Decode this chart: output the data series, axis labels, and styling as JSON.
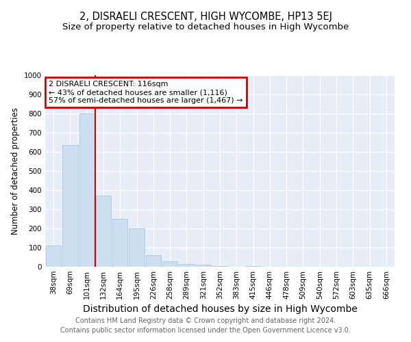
{
  "title": "2, DISRAELI CRESCENT, HIGH WYCOMBE, HP13 5EJ",
  "subtitle": "Size of property relative to detached houses in High Wycombe",
  "xlabel": "Distribution of detached houses by size in High Wycombe",
  "ylabel": "Number of detached properties",
  "categories": [
    "38sqm",
    "69sqm",
    "101sqm",
    "132sqm",
    "164sqm",
    "195sqm",
    "226sqm",
    "258sqm",
    "289sqm",
    "321sqm",
    "352sqm",
    "383sqm",
    "415sqm",
    "446sqm",
    "478sqm",
    "509sqm",
    "540sqm",
    "572sqm",
    "603sqm",
    "635sqm",
    "666sqm"
  ],
  "values": [
    110,
    635,
    800,
    370,
    250,
    200,
    60,
    30,
    15,
    10,
    5,
    0,
    5,
    0,
    0,
    0,
    0,
    0,
    0,
    0,
    0
  ],
  "bar_color": "#ccdff0",
  "bar_edge_color": "#a8c8e8",
  "red_line_index": 2,
  "annotation_line1": "2 DISRAELI CRESCENT: 116sqm",
  "annotation_line2": "← 43% of detached houses are smaller (1,116)",
  "annotation_line3": "57% of semi-detached houses are larger (1,467) →",
  "annotation_box_color": "#ffffff",
  "annotation_box_edge_color": "#cc0000",
  "footer_line1": "Contains HM Land Registry data © Crown copyright and database right 2024.",
  "footer_line2": "Contains public sector information licensed under the Open Government Licence v3.0.",
  "ylim": [
    0,
    1000
  ],
  "background_color": "#e8eef8",
  "grid_color": "#ffffff",
  "title_fontsize": 10.5,
  "subtitle_fontsize": 9.5,
  "xlabel_fontsize": 10,
  "ylabel_fontsize": 8.5,
  "tick_fontsize": 7.5,
  "annotation_fontsize": 8,
  "footer_fontsize": 7
}
